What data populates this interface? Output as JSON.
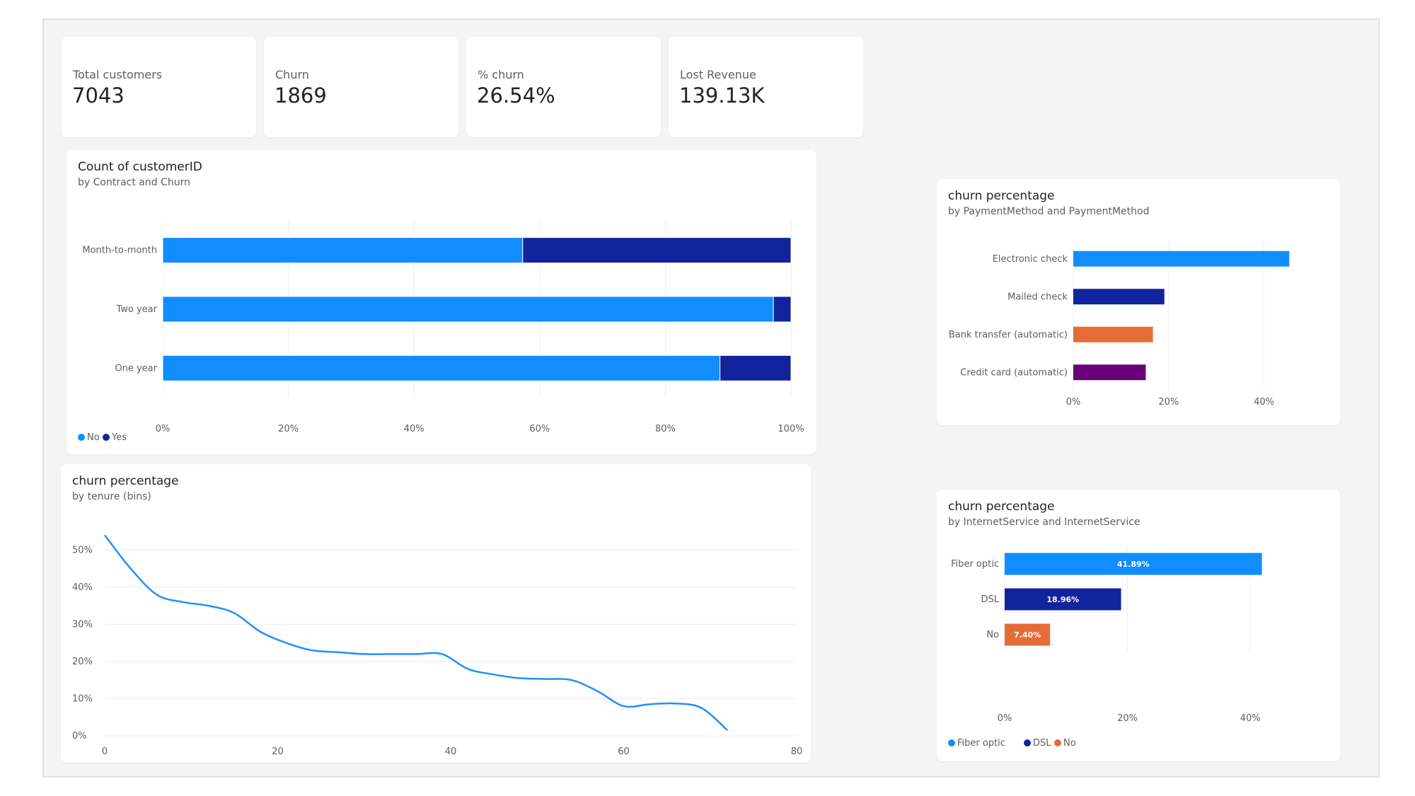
{
  "kpis": [
    {
      "label": "Total customers",
      "value": "7043"
    },
    {
      "label": "Churn",
      "value": "1869"
    },
    {
      "label": "% churn",
      "value": "26.54%"
    },
    {
      "label": "Lost Revenue",
      "value": "139.13K"
    }
  ],
  "charts": {
    "contract": {
      "title": "Count of customerID",
      "subtitle": "by Contract and Churn"
    },
    "tenure": {
      "title": "churn percentage",
      "subtitle": "by tenure (bins)"
    },
    "payment": {
      "title": "churn percentage",
      "subtitle": "by PaymentMethod and PaymentMethod"
    },
    "internet": {
      "title": "churn percentage",
      "subtitle": "by InternetService and InternetService"
    }
  },
  "colors": {
    "blue": "#118dff",
    "navy": "#12239e",
    "orange": "#e66c37",
    "purple": "#6b007b",
    "line": "#1e90ff",
    "grid": "#ececec"
  },
  "chart_data": [
    {
      "type": "bar",
      "orientation": "horizontal",
      "stacked": "100%",
      "title": "Count of customerID",
      "subtitle": "by Contract and Churn",
      "categories": [
        "Month-to-month",
        "Two year",
        "One year"
      ],
      "series": [
        {
          "name": "No",
          "color": "#118dff",
          "values": [
            57.3,
            97.2,
            88.7
          ]
        },
        {
          "name": "Yes",
          "color": "#12239e",
          "values": [
            42.7,
            2.8,
            11.3
          ]
        }
      ],
      "x_ticks": [
        "0%",
        "20%",
        "40%",
        "60%",
        "80%",
        "100%"
      ],
      "xlim": [
        0,
        100
      ],
      "legend": "bottom-left",
      "legend_entries": [
        "No",
        "Yes"
      ]
    },
    {
      "type": "line",
      "title": "churn percentage",
      "subtitle": "by tenure (bins)",
      "x": [
        0,
        3,
        6,
        9,
        12,
        15,
        18,
        21,
        24,
        27,
        30,
        33,
        36,
        39,
        42,
        45,
        48,
        51,
        54,
        57,
        60,
        63,
        66,
        69,
        72
      ],
      "y": [
        54,
        45,
        38,
        36,
        35,
        33,
        28,
        25,
        23,
        22.5,
        22,
        22,
        22,
        22,
        18,
        16.5,
        15.5,
        15.3,
        15,
        12,
        8,
        8.5,
        8.7,
        7.5,
        1.5
      ],
      "x_ticks": [
        "0",
        "20",
        "40",
        "60",
        "80"
      ],
      "y_ticks": [
        "0%",
        "10%",
        "20%",
        "30%",
        "40%",
        "50%"
      ],
      "xlim": [
        0,
        80
      ],
      "ylim": [
        0,
        55
      ],
      "grid": true,
      "color": "#1e90ff"
    },
    {
      "type": "bar",
      "orientation": "horizontal",
      "title": "churn percentage",
      "subtitle": "by PaymentMethod and PaymentMethod",
      "categories": [
        "Electronic check",
        "Mailed check",
        "Bank transfer (automatic)",
        "Credit card (automatic)"
      ],
      "values": [
        45.3,
        19.1,
        16.7,
        15.2
      ],
      "colors": [
        "#118dff",
        "#12239e",
        "#e66c37",
        "#6b007b"
      ],
      "x_ticks": [
        "0%",
        "20%",
        "40%"
      ],
      "xlim": [
        0,
        50
      ]
    },
    {
      "type": "bar",
      "orientation": "horizontal",
      "title": "churn percentage",
      "subtitle": "by InternetService and InternetService",
      "categories": [
        "Fiber optic",
        "DSL",
        "No"
      ],
      "values": [
        41.89,
        18.96,
        7.4
      ],
      "data_labels": [
        "41.89%",
        "18.96%",
        "7.40%"
      ],
      "colors": [
        "#118dff",
        "#12239e",
        "#e66c37"
      ],
      "x_ticks": [
        "0%",
        "20%",
        "40%"
      ],
      "xlim": [
        0,
        50
      ],
      "legend": "bottom-left",
      "legend_entries": [
        "Fiber optic",
        "DSL",
        "No"
      ]
    }
  ]
}
